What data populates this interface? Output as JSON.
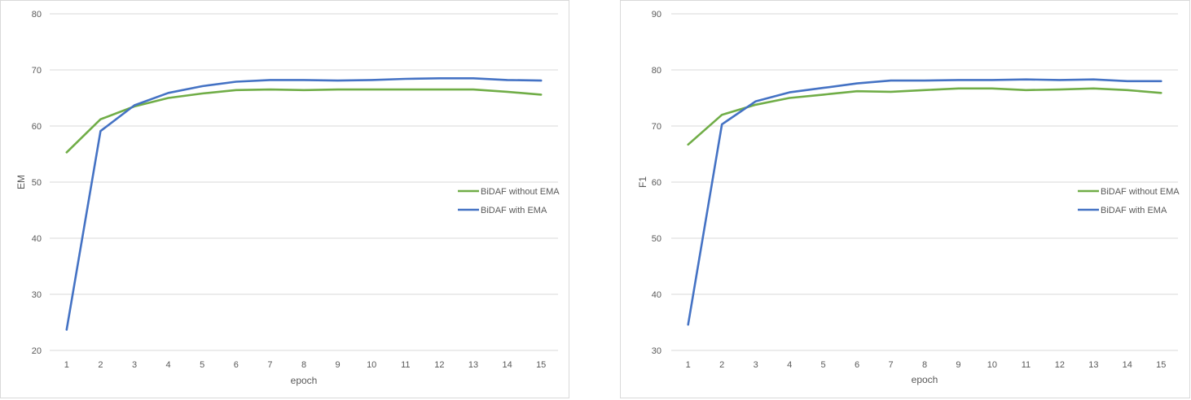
{
  "chart_data": [
    {
      "type": "line",
      "title": "",
      "xlabel": "epoch",
      "ylabel": "EM",
      "ylim": [
        20,
        80
      ],
      "yticks": [
        20,
        30,
        40,
        50,
        60,
        70,
        80
      ],
      "categories": [
        "1",
        "2",
        "3",
        "4",
        "5",
        "6",
        "7",
        "8",
        "9",
        "10",
        "11",
        "12",
        "13",
        "14",
        "15"
      ],
      "legend_position": "right",
      "series": [
        {
          "name": "BiDAF without EMA",
          "color": "#70ad47",
          "values": [
            55.3,
            61.2,
            63.5,
            65.0,
            65.8,
            66.4,
            66.5,
            66.4,
            66.5,
            66.5,
            66.5,
            66.5,
            66.5,
            66.1,
            65.6
          ]
        },
        {
          "name": "BiDAF with EMA",
          "color": "#4472c4",
          "values": [
            23.7,
            59.1,
            63.7,
            65.9,
            67.1,
            67.9,
            68.2,
            68.2,
            68.1,
            68.2,
            68.4,
            68.5,
            68.5,
            68.2,
            68.1
          ]
        }
      ]
    },
    {
      "type": "line",
      "title": "",
      "xlabel": "epoch",
      "ylabel": "F1",
      "ylim": [
        30,
        90
      ],
      "yticks": [
        30,
        40,
        50,
        60,
        70,
        80,
        90
      ],
      "categories": [
        "1",
        "2",
        "3",
        "4",
        "5",
        "6",
        "7",
        "8",
        "9",
        "10",
        "11",
        "12",
        "13",
        "14",
        "15"
      ],
      "legend_position": "right",
      "series": [
        {
          "name": "BiDAF without EMA",
          "color": "#70ad47",
          "values": [
            66.7,
            72.0,
            73.8,
            75.0,
            75.6,
            76.2,
            76.1,
            76.4,
            76.7,
            76.7,
            76.4,
            76.5,
            76.7,
            76.4,
            75.9
          ]
        },
        {
          "name": "BiDAF with EMA",
          "color": "#4472c4",
          "values": [
            34.6,
            70.3,
            74.4,
            76.0,
            76.8,
            77.6,
            78.1,
            78.1,
            78.2,
            78.2,
            78.3,
            78.2,
            78.3,
            78.0,
            78.0
          ]
        }
      ]
    }
  ]
}
